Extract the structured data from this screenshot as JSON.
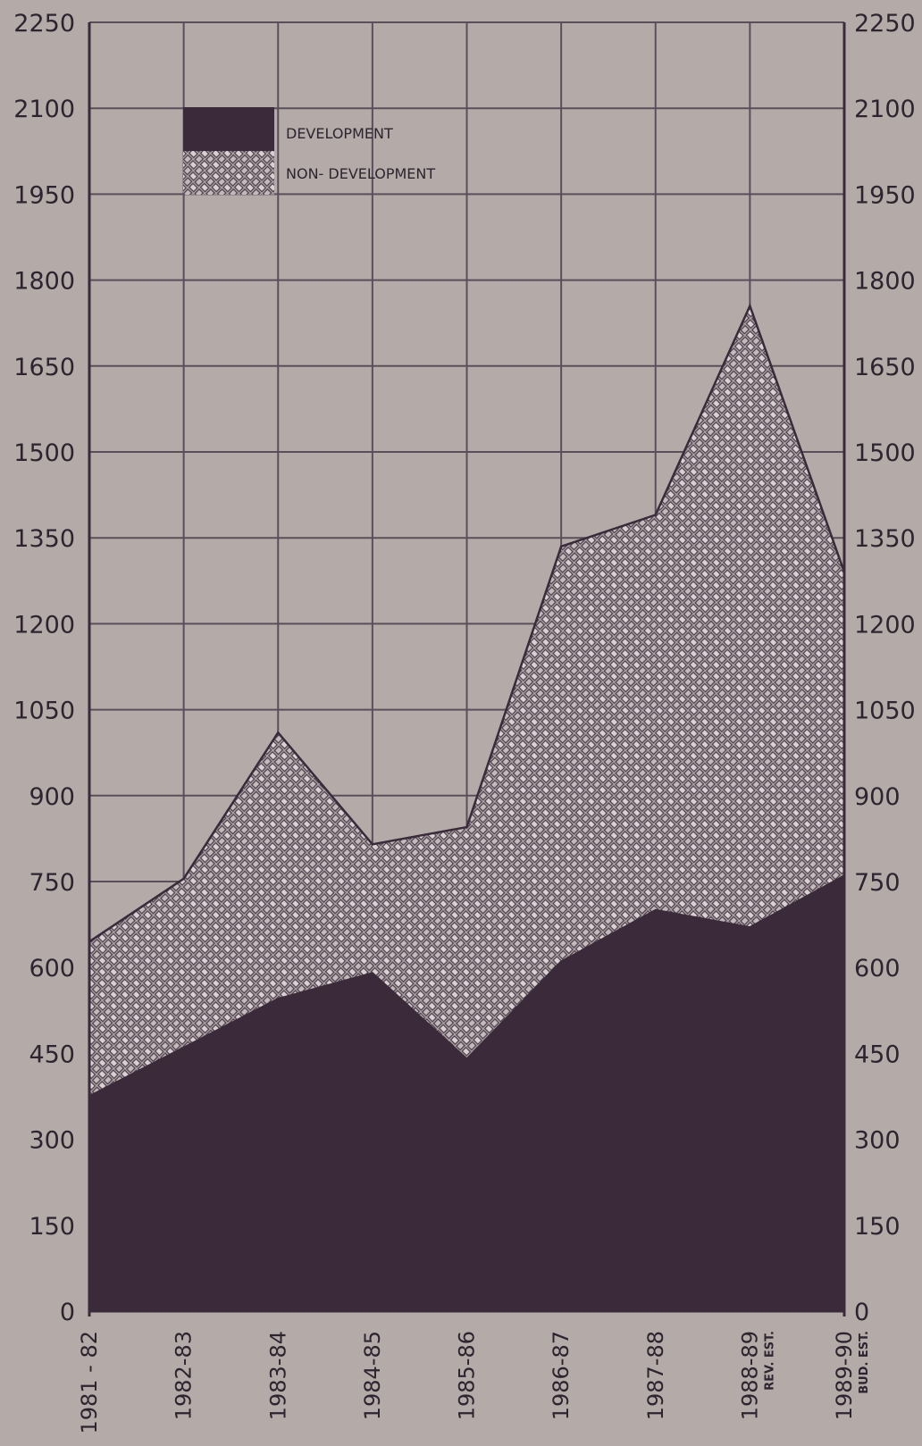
{
  "chart_data": {
    "type": "area",
    "stacked": true,
    "categories": [
      "1981 - 82",
      "1982-83",
      "1983-84",
      "1984-85",
      "1985-86",
      "1986-87",
      "1987-88",
      "1988-89",
      "1989-90"
    ],
    "category_notes": [
      "",
      "",
      "",
      "",
      "",
      "",
      "",
      "REV. EST.",
      "BUD. EST."
    ],
    "series": [
      {
        "name": "DEVELOPMENT",
        "values": [
          375,
          460,
          545,
          590,
          440,
          610,
          700,
          670,
          760
        ],
        "color": "#3a2a3a",
        "pattern": "solid"
      },
      {
        "name": "NON- DEVELOPMENT",
        "values": [
          270,
          295,
          465,
          225,
          405,
          725,
          690,
          1085,
          530
        ],
        "color": "#9c9196",
        "pattern": "woven-hatch"
      }
    ],
    "yticks": [
      0,
      150,
      300,
      450,
      600,
      750,
      900,
      1050,
      1200,
      1350,
      1500,
      1650,
      1800,
      1950,
      2100,
      2250
    ],
    "ylim": [
      0,
      2250
    ],
    "grid": true,
    "legend_position": "top-left",
    "title": "",
    "xlabel": "",
    "ylabel": ""
  }
}
